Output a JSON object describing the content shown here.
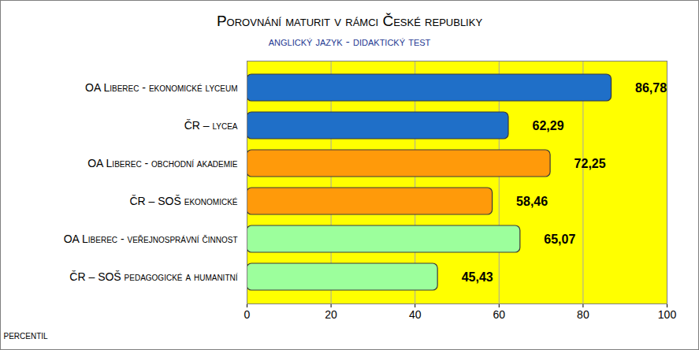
{
  "chart_data": {
    "type": "bar",
    "title": "Porovnání maturit v rámci České republiky",
    "subtitle": "anglický jazyk - didaktický test",
    "orientation": "horizontal",
    "categories": [
      "OA Liberec - ekonomické lyceum",
      "ČR – lycea",
      "OA Liberec - obchodní akademie",
      "ČR – SOŠ ekonomické",
      "OA Liberec - veřejnosprávní činnost",
      "ČR – SOŠ pedagogické a humanitní"
    ],
    "values": [
      86.78,
      62.29,
      72.25,
      58.46,
      65.07,
      45.43
    ],
    "value_labels": [
      "86,78",
      "62,29",
      "72,25",
      "58,46",
      "65,07",
      "45,43"
    ],
    "colors": [
      "#1f6fc8",
      "#1f6fc8",
      "#ff9a0a",
      "#ff9a0a",
      "#9cff9c",
      "#9cff9c"
    ],
    "x_label": "percentil",
    "xlim": [
      0,
      100
    ],
    "xticks": [
      0,
      20,
      40,
      60,
      80,
      100
    ],
    "grid": true,
    "data_labels": true
  }
}
